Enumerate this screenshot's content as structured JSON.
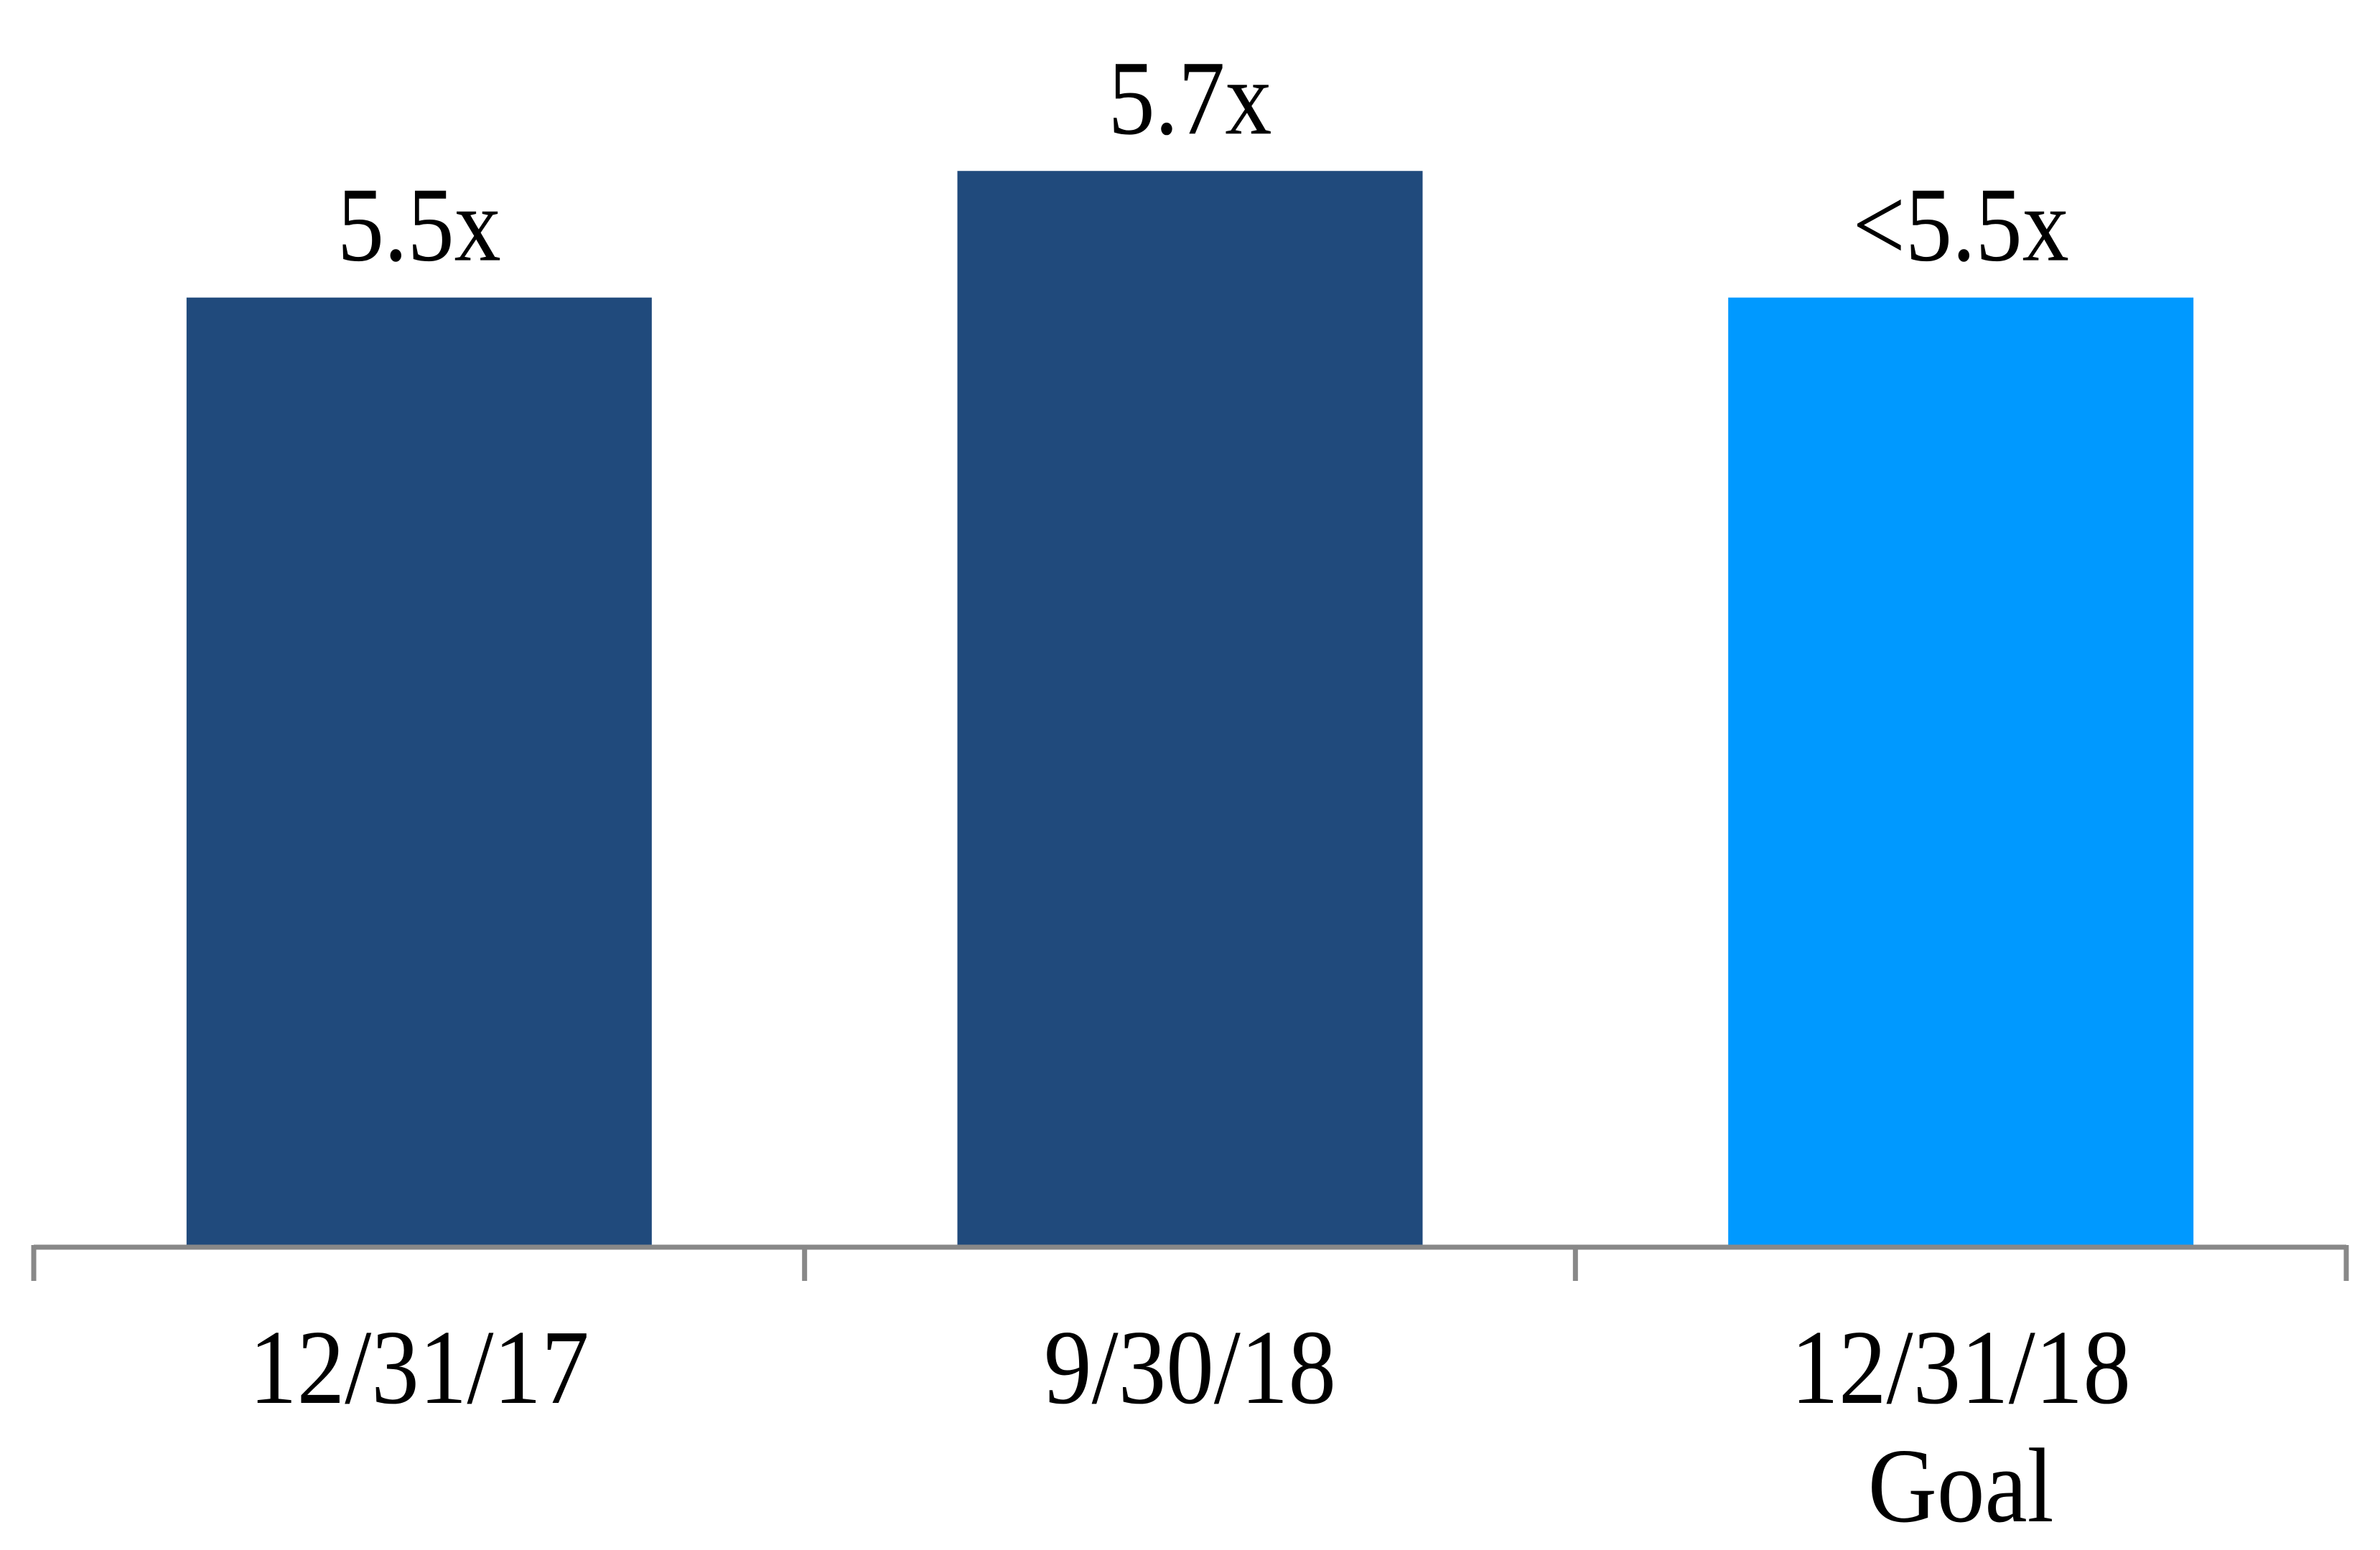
{
  "chart_data": {
    "type": "bar",
    "title": "",
    "xlabel": "",
    "ylabel": "",
    "ylim": [
      4,
      5.8
    ],
    "grid": false,
    "categories": [
      [
        "12/31/17"
      ],
      [
        "9/30/18"
      ],
      [
        "12/31/18",
        "Goal"
      ]
    ],
    "values": [
      5.5,
      5.7,
      5.5
    ],
    "data_labels": [
      "5.5x",
      "5.7x",
      "<5.5x"
    ],
    "colors": [
      "#204a7c",
      "#204a7c",
      "#0099ff"
    ],
    "axis_color": "#888888"
  }
}
